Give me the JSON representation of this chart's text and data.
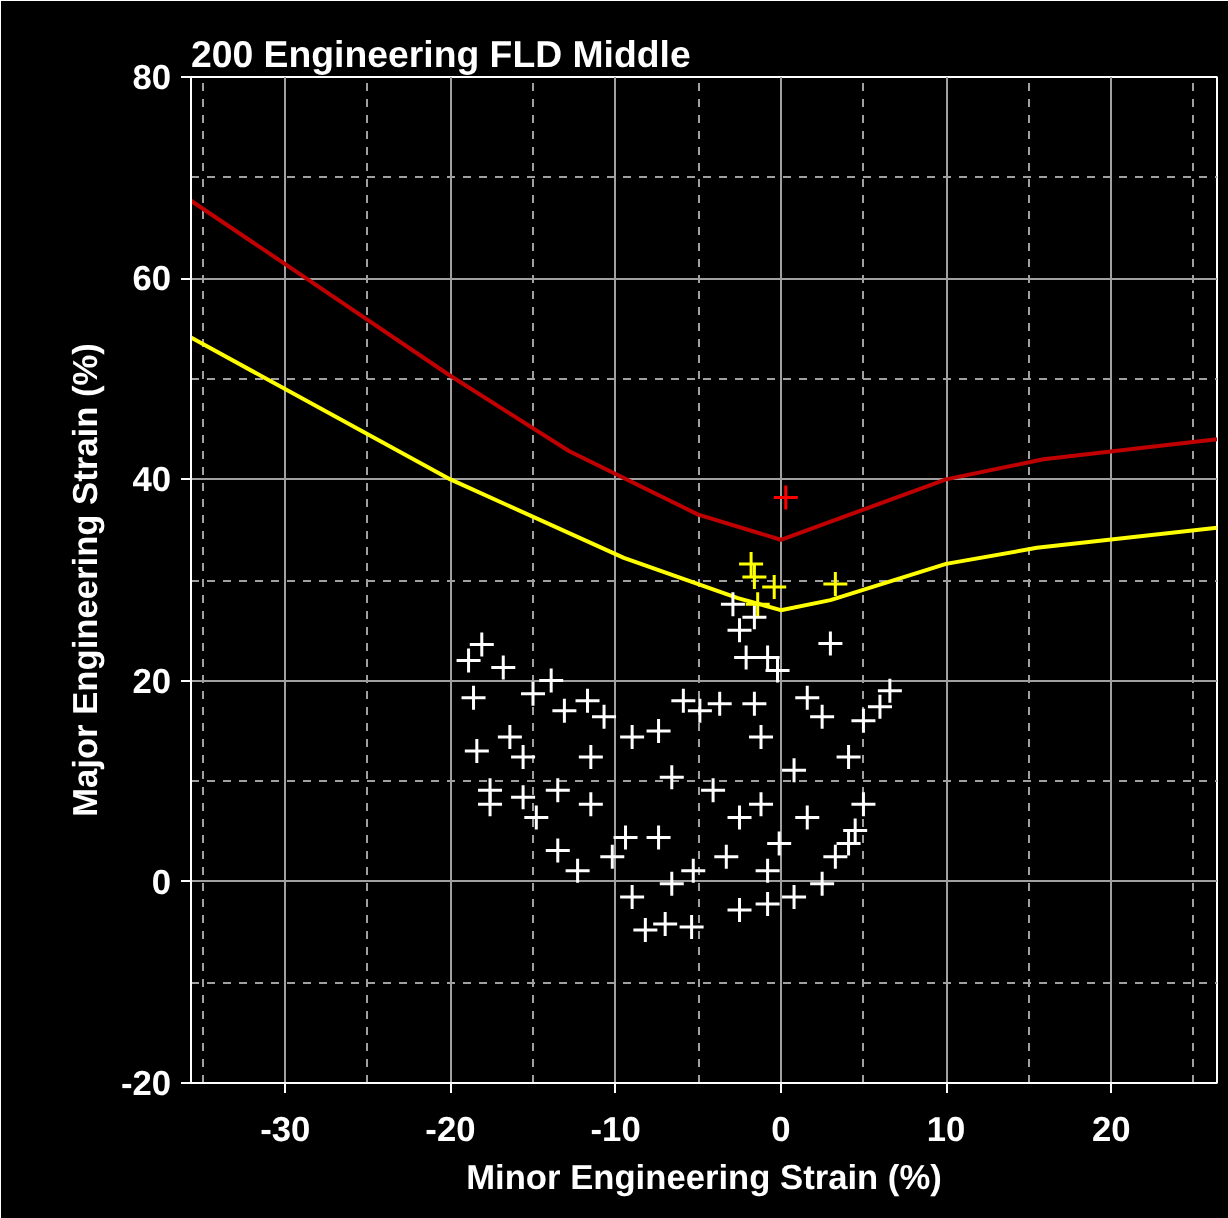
{
  "chart_data": {
    "type": "line",
    "title": "200 Engineering FLD Middle",
    "xlabel": "Minor Engineering Strain (%)",
    "ylabel": "Major Engineering Strain (%)",
    "xlim": [
      -35.7,
      26.4
    ],
    "ylim": [
      -20,
      80
    ],
    "xticks": [
      -30,
      -20,
      -10,
      0,
      10,
      20
    ],
    "yticks": [
      -20,
      0,
      20,
      40,
      60,
      80
    ],
    "grid": true,
    "series": [
      {
        "color": "#c00000",
        "marker": "none",
        "x": [
          -35.7,
          -30,
          -20.1,
          -12.8,
          -5,
          0,
          10,
          15.9,
          26.4
        ],
        "values": [
          67.7,
          61.4,
          50.4,
          42.8,
          36.5,
          34,
          40,
          42,
          44
        ]
      },
      {
        "color": "#ffff00",
        "marker": "none",
        "x": [
          -35.7,
          -20,
          -9.5,
          -2.6,
          0,
          3,
          10,
          15.5,
          26.4
        ],
        "values": [
          54.1,
          40,
          32.2,
          28.2,
          27,
          28,
          31.6,
          33.2,
          35.2
        ]
      },
      {
        "type": "scatter",
        "color": "#ffffff",
        "marker": "cross",
        "x": [
          -18.9,
          -18.1,
          -16.8,
          -13.9,
          -18.6,
          -18.4,
          -17.6,
          -17.6,
          -15.6,
          -15,
          -13.1,
          -11.7,
          -10.7,
          -9,
          -7.4,
          -5.9,
          -4.9,
          -3.7,
          -2.9,
          -2.5,
          -2.1,
          -0.8,
          -0.2,
          -1.6,
          1.6,
          3,
          2.5,
          5,
          6.6,
          6,
          4.1,
          5,
          4.5,
          4.1,
          -12.3,
          -9,
          -8.2,
          -7,
          -5.4,
          -2.5,
          -0.8,
          0.8,
          2.5,
          3.3,
          -13.5,
          -14.8,
          -15.6,
          -16.4,
          -11.5,
          -7.4,
          -3.3,
          -1.2,
          -1.2,
          -1.6,
          0.8,
          1.6,
          -5.3,
          -9.4,
          -13.5,
          -11.5,
          -6.6,
          -4.1,
          -2.5,
          -0.1,
          -0.8,
          -6.6,
          -10.2
        ],
        "values": [
          22,
          23.6,
          21.3,
          20,
          18.3,
          13,
          9.1,
          7.7,
          8.4,
          18.7,
          17,
          18,
          16.4,
          14.4,
          15,
          18,
          17,
          17.7,
          27.6,
          25,
          22.3,
          22.3,
          21,
          26.3,
          18.3,
          23.7,
          16.4,
          16,
          19,
          17.4,
          12.4,
          7.7,
          5.1,
          3.8,
          1.1,
          -1.5,
          -4.8,
          -4.2,
          -4.5,
          -2.8,
          -2.2,
          -1.5,
          -0.2,
          2.5,
          3.1,
          6.4,
          12.4,
          14.4,
          7.7,
          4.4,
          2.5,
          7.7,
          14.4,
          17.7,
          11.1,
          6.4,
          1.1,
          4.4,
          9.1,
          12.4,
          10.4,
          9.1,
          6.4,
          3.8,
          1.1,
          -0.2,
          2.5
        ]
      },
      {
        "type": "scatter",
        "color": "#ffff00",
        "marker": "cross",
        "x": [
          -1.8,
          -1.6,
          -0.4,
          3.3,
          -1.4
        ],
        "values": [
          31.6,
          30.3,
          29.3,
          29.6,
          27.6
        ]
      },
      {
        "type": "scatter",
        "color": "#ff0000",
        "marker": "cross",
        "x": [
          0.3
        ],
        "values": [
          38.2
        ]
      }
    ]
  }
}
